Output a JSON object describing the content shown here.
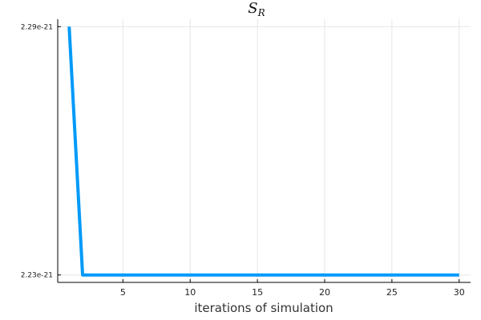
{
  "chart_data": {
    "type": "line",
    "title": {
      "main": "S",
      "subscript": "R"
    },
    "xlabel": "iterations of simulation",
    "ylabel": "",
    "xlim": [
      0.15,
      30.85
    ],
    "ylim": [
      2.2282e-21,
      2.2918e-21
    ],
    "xticks": [
      5,
      10,
      15,
      20,
      25,
      30
    ],
    "xtick_labels": [
      "5",
      "10",
      "15",
      "20",
      "25",
      "30"
    ],
    "yticks": [
      2.23e-21,
      2.29e-21
    ],
    "ytick_labels": [
      "2.23e-21",
      "2.29e-21"
    ],
    "grid": true,
    "legend": "none",
    "series": [
      {
        "color": "#009af9",
        "x": [
          1,
          2,
          3,
          4,
          5,
          6,
          7,
          8,
          9,
          10,
          11,
          12,
          13,
          14,
          15,
          16,
          17,
          18,
          19,
          20,
          21,
          22,
          23,
          24,
          25,
          26,
          27,
          28,
          29,
          30
        ],
        "y": [
          2.29e-21,
          2.23e-21,
          2.23e-21,
          2.23e-21,
          2.23e-21,
          2.23e-21,
          2.23e-21,
          2.23e-21,
          2.23e-21,
          2.23e-21,
          2.23e-21,
          2.23e-21,
          2.23e-21,
          2.23e-21,
          2.23e-21,
          2.23e-21,
          2.23e-21,
          2.23e-21,
          2.23e-21,
          2.23e-21,
          2.23e-21,
          2.23e-21,
          2.23e-21,
          2.23e-21,
          2.23e-21,
          2.23e-21,
          2.23e-21,
          2.23e-21,
          2.23e-21,
          2.23e-21
        ]
      }
    ]
  }
}
